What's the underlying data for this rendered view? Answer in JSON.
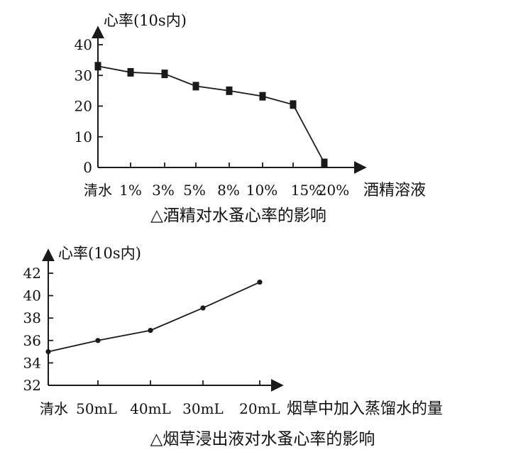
{
  "chart_data": [
    {
      "type": "line",
      "title": "△酒精对水蚤心率的影响",
      "ylabel": "心率(10s内)",
      "xlabel": "酒精溶液",
      "ylim": [
        0,
        40
      ],
      "yticks": [
        "0",
        "10",
        "20",
        "30",
        "40"
      ],
      "categories": [
        "清水",
        "1%",
        "3%",
        "5%",
        "8%",
        "10%",
        "15%",
        "20%"
      ],
      "values": [
        33,
        31,
        30.5,
        26.5,
        25,
        23.2,
        20.5,
        1.5
      ],
      "marker": "square",
      "grid": false
    },
    {
      "type": "line",
      "title": "△烟草浸出液对水蚤心率的影响",
      "ylabel": "心率(10s内)",
      "xlabel": "烟草中加入蒸馏水的量",
      "ylim": [
        32,
        42
      ],
      "yticks": [
        "32",
        "34",
        "36",
        "38",
        "40",
        "42"
      ],
      "categories": [
        "清水",
        "50mL",
        "40mL",
        "30mL",
        "20mL"
      ],
      "values": [
        35,
        36,
        36.9,
        38.9,
        41.2
      ],
      "marker": "dot",
      "grid": false
    }
  ]
}
